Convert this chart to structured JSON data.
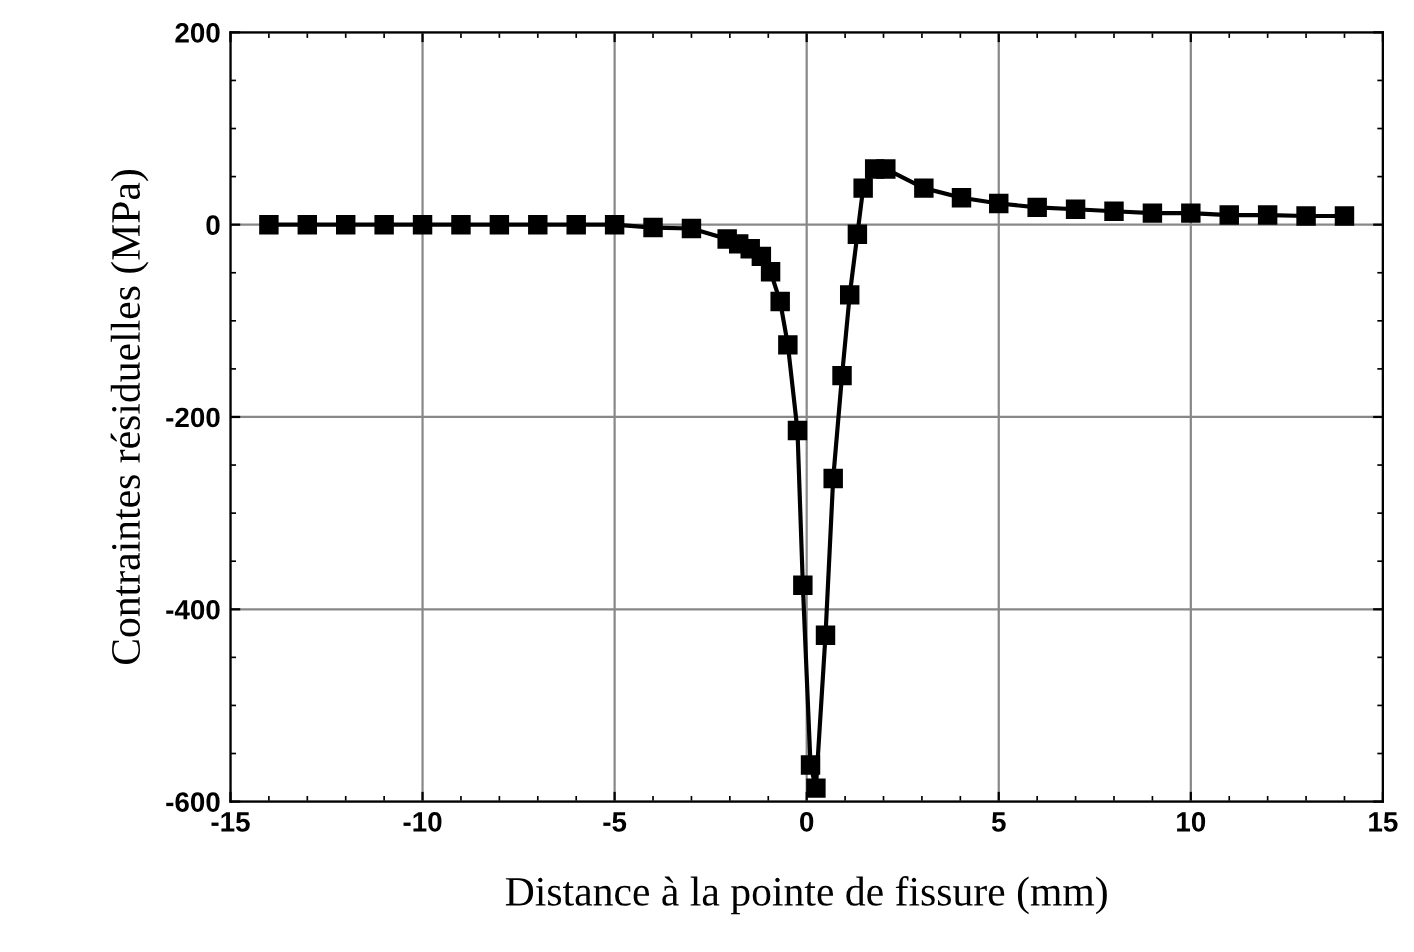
{
  "chart_data": {
    "type": "line",
    "xlabel": "Distance à la pointe de fissure (mm)",
    "ylabel": "Contraintes résiduelles (MPa)",
    "x": [
      -14,
      -13,
      -12,
      -11,
      -10,
      -9,
      -8,
      -7,
      -6,
      -5,
      -4,
      -3,
      -2.07,
      -1.77,
      -1.47,
      -1.18,
      -0.94,
      -0.69,
      -0.49,
      -0.24,
      -0.1,
      0.1,
      0.24,
      0.49,
      0.69,
      0.92,
      1.12,
      1.32,
      1.47,
      1.77,
      2.06,
      3.05,
      4.03,
      5,
      6,
      7,
      8,
      9,
      10,
      11,
      12,
      13,
      14
    ],
    "series": [
      {
        "color": "#000000",
        "values": [
          0,
          0,
          0,
          0,
          0,
          0,
          0,
          0,
          0,
          0,
          -3,
          -4,
          -15,
          -20,
          -25,
          -33,
          -49,
          -80,
          -125,
          -214,
          -375,
          -562,
          -586,
          -427,
          -264,
          -157,
          -73,
          -10,
          38,
          58,
          58,
          38,
          28,
          22,
          18,
          16,
          14,
          12,
          12,
          10,
          10,
          9,
          9
        ]
      }
    ],
    "xlim": [
      -15,
      15
    ],
    "xticks": [
      -15,
      -10,
      -5,
      0,
      5,
      10,
      15
    ],
    "ylim": [
      -600,
      200
    ],
    "yticks": [
      -600,
      -400,
      -200,
      0,
      200
    ],
    "grid": true,
    "marker": "square",
    "line_style": "solid"
  }
}
